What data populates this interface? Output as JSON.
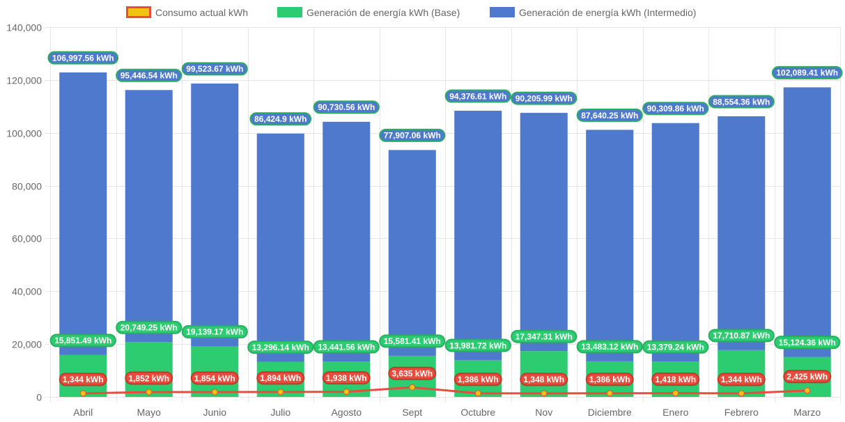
{
  "chart_data": {
    "type": "bar",
    "stacked": true,
    "title": "",
    "xlabel": "",
    "ylabel": "",
    "ylim": [
      0,
      140000
    ],
    "y_ticks": [
      0,
      20000,
      40000,
      60000,
      80000,
      100000,
      120000,
      140000
    ],
    "y_tick_labels": [
      "0",
      "20,000",
      "40,000",
      "60,000",
      "80,000",
      "100,000",
      "120,000",
      "140,000"
    ],
    "grid": true,
    "legend_position": "top-center",
    "categories": [
      "Abril",
      "Mayo",
      "Junio",
      "Julio",
      "Agosto",
      "Sept",
      "Octubre",
      "Nov",
      "Diciembre",
      "Enero",
      "Febrero",
      "Marzo"
    ],
    "series": [
      {
        "name": "Consumo actual kWh",
        "type": "line",
        "color": "#e74c3c",
        "point_color": "#f1c40f",
        "values": [
          1344,
          1852,
          1854,
          1894,
          1938,
          3635,
          1386,
          1348,
          1386,
          1418,
          1344,
          2425
        ],
        "labels": [
          "1,344 kWh",
          "1,852 kWh",
          "1,854 kWh",
          "1,894 kWh",
          "1,938 kWh",
          "3,635 kWh",
          "1,386 kWh",
          "1,348 kWh",
          "1,386 kWh",
          "1,418 kWh",
          "1,344 kWh",
          "2,425 kWh"
        ]
      },
      {
        "name": "Generación de energía kWh (Base)",
        "type": "bar",
        "color": "#2ecc71",
        "values": [
          15851.49,
          20749.25,
          19139.17,
          13296.14,
          13441.56,
          15581.41,
          13981.72,
          17347.31,
          13483.12,
          13379.24,
          17710.87,
          15124.36
        ],
        "labels": [
          "15,851.49 kWh",
          "20,749.25 kWh",
          "19,139.17 kWh",
          "13,296.14 kWh",
          "13,441.56 kWh",
          "15,581.41 kWh",
          "13,981.72 kWh",
          "17,347.31 kWh",
          "13,483.12 kWh",
          "13,379.24 kWh",
          "17,710.87 kWh",
          "15,124.36 kWh"
        ]
      },
      {
        "name": "Generación de energía kWh (Intermedio)",
        "type": "bar",
        "color": "#4e79cc",
        "values": [
          106997.56,
          95446.54,
          99523.67,
          86424.9,
          90730.56,
          77907.06,
          94376.61,
          90205.99,
          87640.25,
          90309.86,
          88554.36,
          102089.41
        ],
        "labels": [
          "106,997.56 kWh",
          "95,446.54 kWh",
          "99,523.67 kWh",
          "86,424.9 kWh",
          "90,730.56 kWh",
          "77,907.06 kWh",
          "94,376.61 kWh",
          "90,205.99 kWh",
          "87,640.25 kWh",
          "90,309.86 kWh",
          "88,554.36 kWh",
          "102,089.41 kWh"
        ]
      }
    ]
  },
  "colors": {
    "grid": "#e5e5e5",
    "axis_text": "#666666",
    "legend_line_border": "#e74c3c",
    "legend_line_fill": "#f1c40f",
    "base_label_border": "#27ae60",
    "intermedio_label_border": "#27ae60",
    "consumo_label_border": "#c0392b"
  }
}
